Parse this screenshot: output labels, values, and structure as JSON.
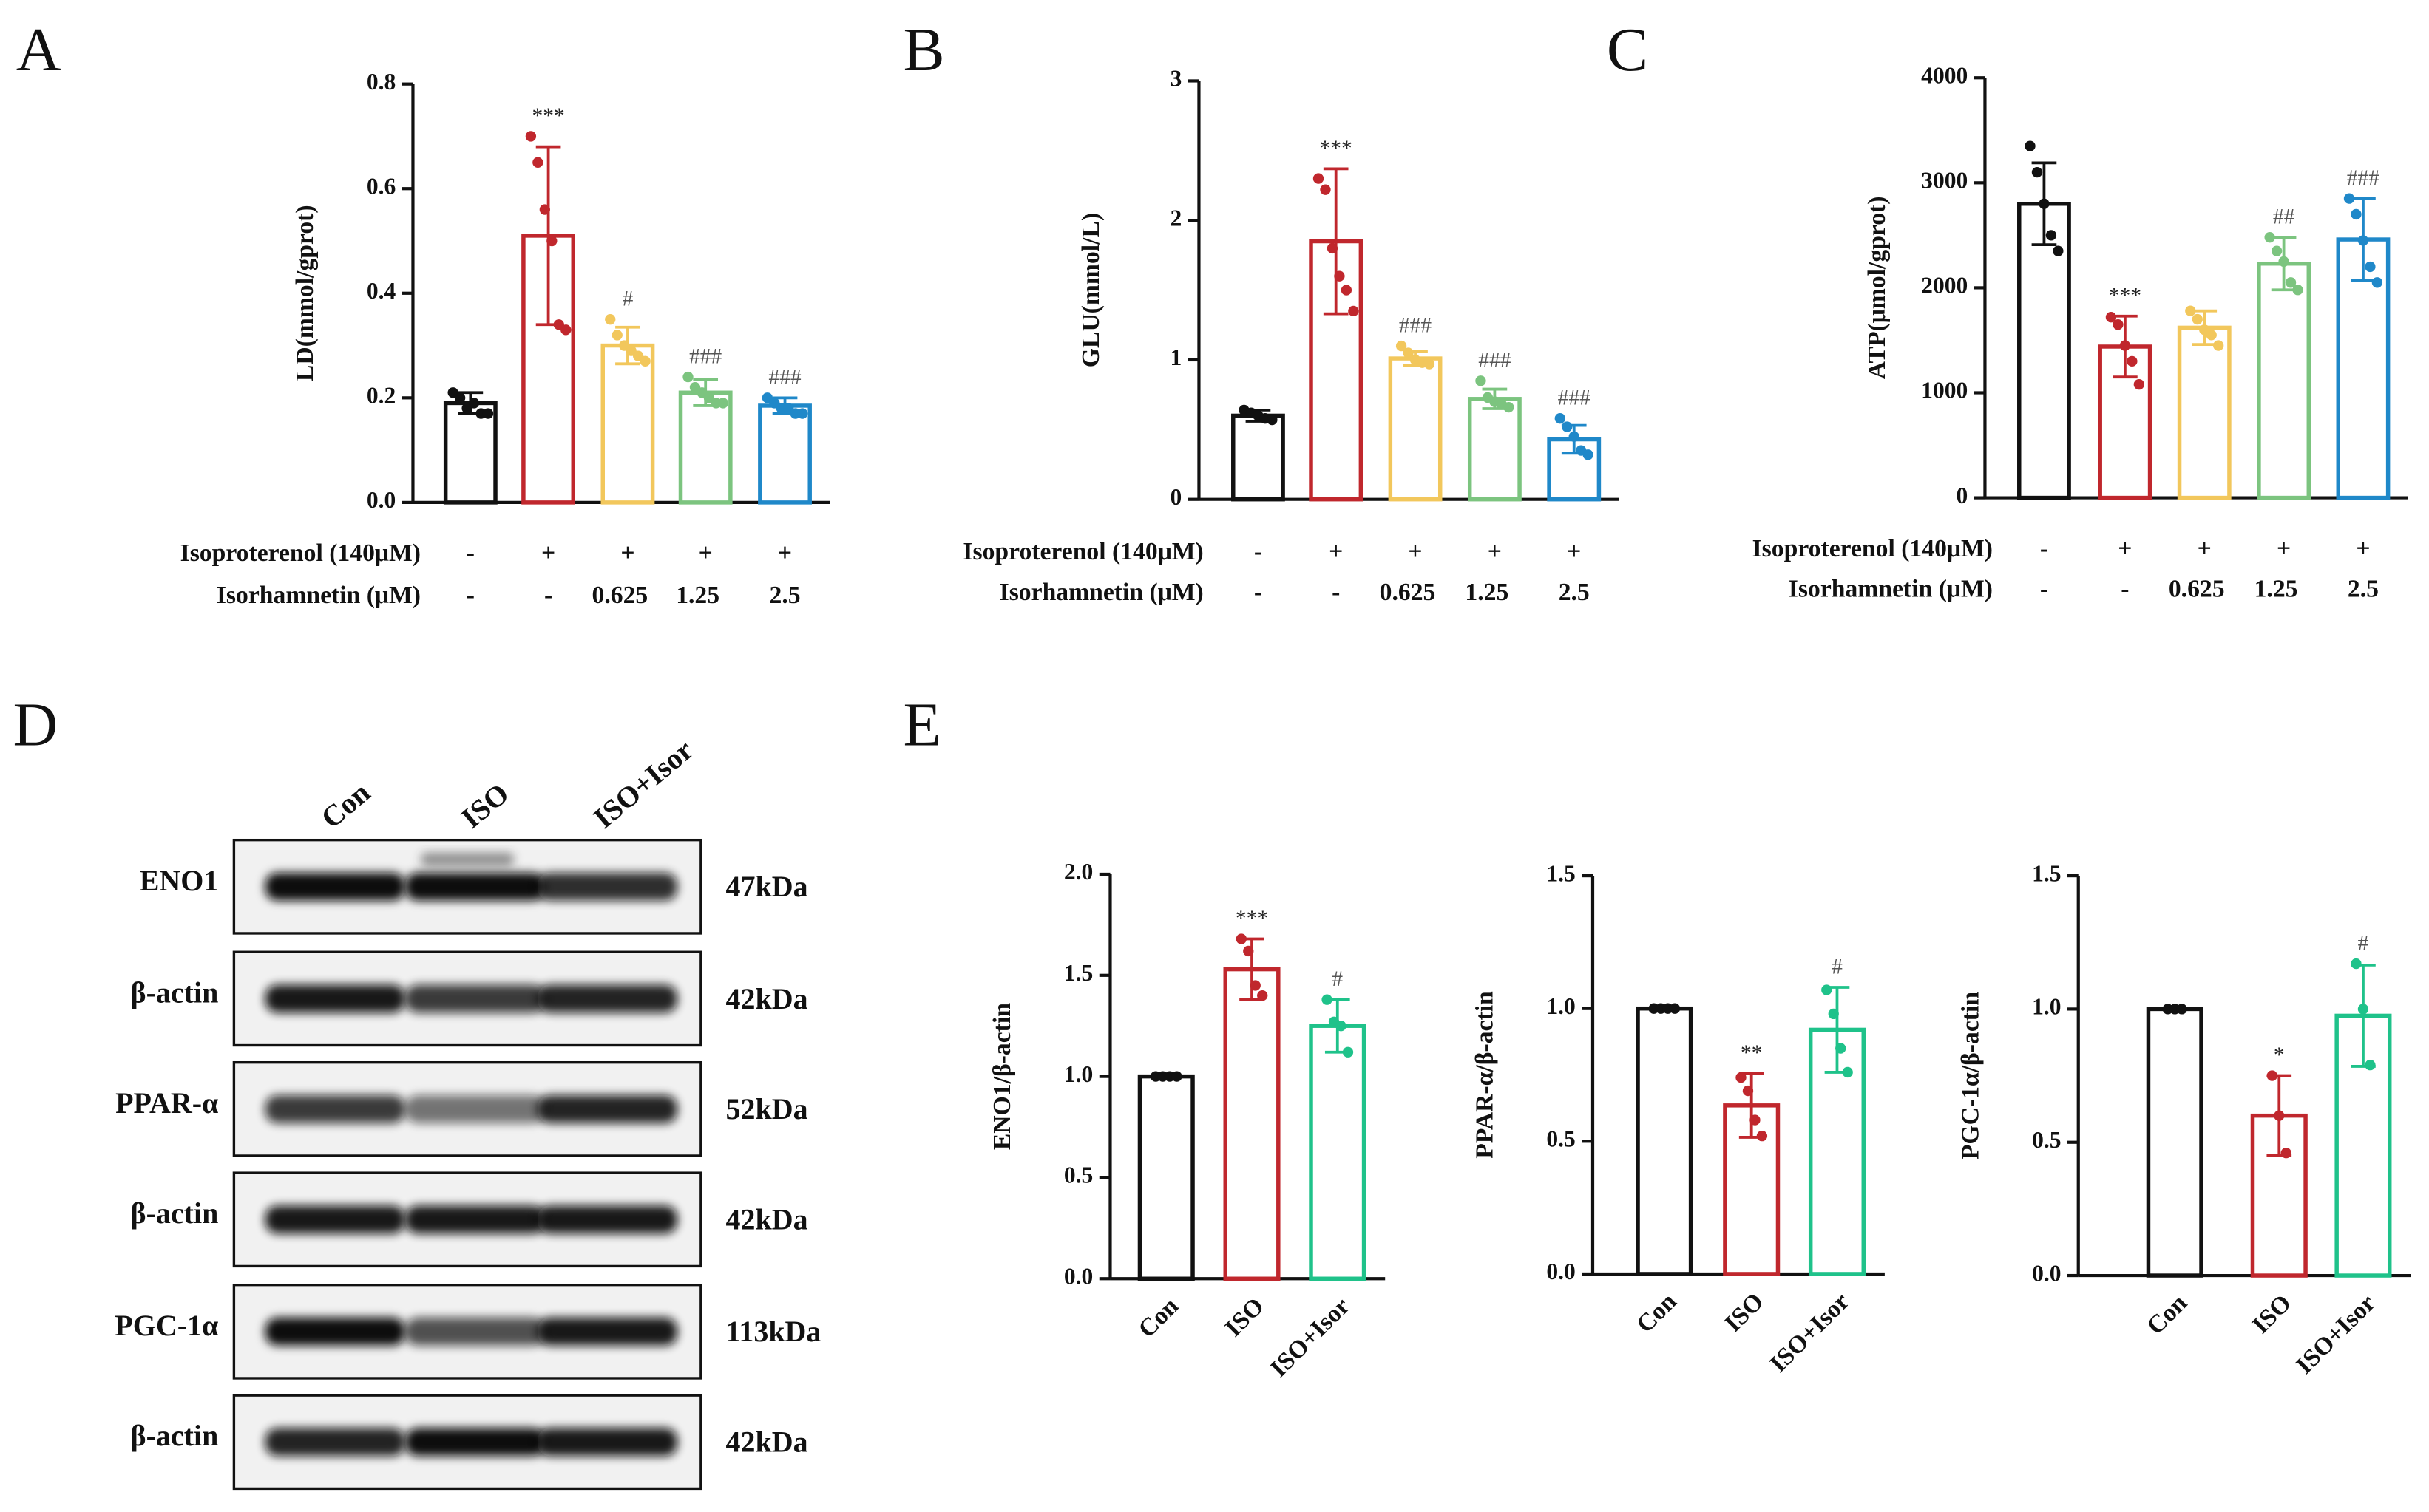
{
  "panel_labels": [
    "A",
    "B",
    "C",
    "D",
    "E"
  ],
  "chart_data": [
    {
      "type": "bar",
      "ylabel": "LD(mmol/gprot)",
      "ylim": [
        0,
        0.8
      ],
      "yticks": [
        {
          "value": 0,
          "label": "0.0"
        },
        0.2,
        0.4,
        0.6,
        0.8
      ],
      "colors": [
        "#111111",
        "#c0272d",
        "#f2c75c",
        "#7cc47f",
        "#1f88c9"
      ],
      "values": [
        0.19,
        0.51,
        0.3,
        0.21,
        0.185
      ],
      "errors": [
        0.02,
        0.17,
        0.035,
        0.025,
        0.015
      ],
      "points": [
        [
          0.21,
          0.2,
          0.18,
          0.19,
          0.17,
          0.17
        ],
        [
          0.7,
          0.65,
          0.56,
          0.5,
          0.34,
          0.33
        ],
        [
          0.35,
          0.32,
          0.3,
          0.29,
          0.28,
          0.27
        ],
        [
          0.24,
          0.22,
          0.21,
          0.2,
          0.19,
          0.19
        ],
        [
          0.2,
          0.19,
          0.18,
          0.18,
          0.17,
          0.17
        ]
      ],
      "annotations": [
        null,
        "***",
        "#",
        "###",
        "###"
      ],
      "treatments": [
        {
          "label": "Isoproterenol (140μM)",
          "values": [
            "-",
            "+",
            "+",
            "+",
            "+"
          ]
        },
        {
          "label": "Isorhamnetin (μM)",
          "values": [
            "-",
            "-",
            "0.625",
            "1.25",
            "2.5"
          ]
        }
      ]
    },
    {
      "type": "bar",
      "ylabel": "GLU(mmol/L)",
      "ylim": [
        0,
        3
      ],
      "yticks": [
        0,
        1,
        2,
        3
      ],
      "colors": [
        "#111111",
        "#c0272d",
        "#f2c75c",
        "#7cc47f",
        "#1f88c9"
      ],
      "values": [
        0.6,
        1.85,
        1.01,
        0.72,
        0.43
      ],
      "errors": [
        0.04,
        0.52,
        0.05,
        0.07,
        0.1
      ],
      "points": [
        [
          0.64,
          0.62,
          0.6,
          0.58,
          0.57
        ],
        [
          2.3,
          2.22,
          1.8,
          1.6,
          1.5,
          1.35
        ],
        [
          1.1,
          1.05,
          1.0,
          0.98,
          0.97
        ],
        [
          0.85,
          0.73,
          0.7,
          0.68,
          0.66
        ],
        [
          0.58,
          0.52,
          0.45,
          0.35,
          0.32
        ]
      ],
      "annotations": [
        null,
        "***",
        "###",
        "###",
        "###"
      ],
      "treatments": [
        {
          "label": "Isoproterenol (140μM)",
          "values": [
            "-",
            "+",
            "+",
            "+",
            "+"
          ]
        },
        {
          "label": "Isorhamnetin (μM)",
          "values": [
            "-",
            "-",
            "0.625",
            "1.25",
            "2.5"
          ]
        }
      ]
    },
    {
      "type": "bar",
      "ylabel": "ATP(μmol/gprot)",
      "ylim": [
        0,
        4000
      ],
      "yticks": [
        0,
        1000,
        2000,
        3000,
        4000
      ],
      "colors": [
        "#111111",
        "#c0272d",
        "#f2c75c",
        "#7cc47f",
        "#1f88c9"
      ],
      "values": [
        2800,
        1440,
        1620,
        2230,
        2460
      ],
      "errors": [
        390,
        290,
        160,
        250,
        390
      ],
      "points": [
        [
          3350,
          3100,
          2800,
          2500,
          2350
        ],
        [
          1720,
          1650,
          1450,
          1300,
          1080
        ],
        [
          1780,
          1700,
          1600,
          1550,
          1450
        ],
        [
          2480,
          2350,
          2250,
          2050,
          1980
        ],
        [
          2850,
          2700,
          2450,
          2200,
          2050
        ]
      ],
      "annotations": [
        null,
        "***",
        null,
        "##",
        "###"
      ],
      "treatments": [
        {
          "label": "Isoproterenol (140μM)",
          "values": [
            "-",
            "+",
            "+",
            "+",
            "+"
          ]
        },
        {
          "label": "Isorhamnetin (μM)",
          "values": [
            "-",
            "-",
            "0.625",
            "1.25",
            "2.5"
          ]
        }
      ]
    },
    {
      "type": "bar",
      "ylabel": "ENO1/β-actin",
      "ylim": [
        0,
        2
      ],
      "yticks": [
        {
          "value": 0,
          "label": "0.0"
        },
        0.5,
        {
          "value": 1,
          "label": "1.0"
        },
        1.5,
        {
          "value": 2,
          "label": "2.0"
        }
      ],
      "colors": [
        "#111111",
        "#c0272d",
        "#1fc28a"
      ],
      "categories": [
        "Con",
        "ISO",
        "ISO+Isor"
      ],
      "values": [
        1.0,
        1.53,
        1.25
      ],
      "errors": [
        0,
        0.15,
        0.13
      ],
      "points": [
        [
          1,
          1,
          1,
          1
        ],
        [
          1.68,
          1.62,
          1.45,
          1.4
        ],
        [
          1.38,
          1.27,
          1.25,
          1.12
        ]
      ],
      "annotations": [
        null,
        "***",
        "#"
      ]
    },
    {
      "type": "bar",
      "ylabel": "PPAR-α/β-actin",
      "ylim": [
        0,
        1.5
      ],
      "yticks": [
        {
          "value": 0,
          "label": "0.0"
        },
        0.5,
        {
          "value": 1,
          "label": "1.0"
        },
        1.5
      ],
      "colors": [
        "#111111",
        "#c0272d",
        "#1fc28a"
      ],
      "categories": [
        "Con",
        "ISO",
        "ISO+Isor"
      ],
      "values": [
        1.0,
        0.635,
        0.92
      ],
      "errors": [
        0,
        0.12,
        0.16
      ],
      "points": [
        [
          1,
          1,
          1,
          1
        ],
        [
          0.74,
          0.69,
          0.58,
          0.52
        ],
        [
          1.07,
          0.98,
          0.85,
          0.76
        ]
      ],
      "annotations": [
        null,
        "**",
        "#"
      ]
    },
    {
      "type": "bar",
      "ylabel": "PGC-1α/β-actin",
      "ylim": [
        0,
        1.5
      ],
      "yticks": [
        {
          "value": 0,
          "label": "0.0"
        },
        0.5,
        {
          "value": 1,
          "label": "1.0"
        },
        1.5
      ],
      "colors": [
        "#111111",
        "#c0272d",
        "#1fc28a"
      ],
      "categories": [
        "Con",
        "ISO",
        "ISO+Isor"
      ],
      "values": [
        1.0,
        0.6,
        0.975
      ],
      "errors": [
        0,
        0.15,
        0.19
      ],
      "points": [
        [
          1,
          1,
          1
        ],
        [
          0.75,
          0.6,
          0.46
        ],
        [
          1.17,
          1.0,
          0.79
        ]
      ],
      "annotations": [
        null,
        "*",
        "#"
      ]
    }
  ],
  "blot": {
    "columns": [
      "Con",
      "ISO",
      "ISO+Isor"
    ],
    "rows": [
      {
        "protein": "ENO1",
        "size": "47kDa"
      },
      {
        "protein": "β-actin",
        "size": "42kDa"
      },
      {
        "protein": "PPAR-α",
        "size": "52kDa"
      },
      {
        "protein": "β-actin",
        "size": "42kDa"
      },
      {
        "protein": "PGC-1α",
        "size": "113kDa"
      },
      {
        "protein": "β-actin",
        "size": "42kDa"
      }
    ]
  }
}
